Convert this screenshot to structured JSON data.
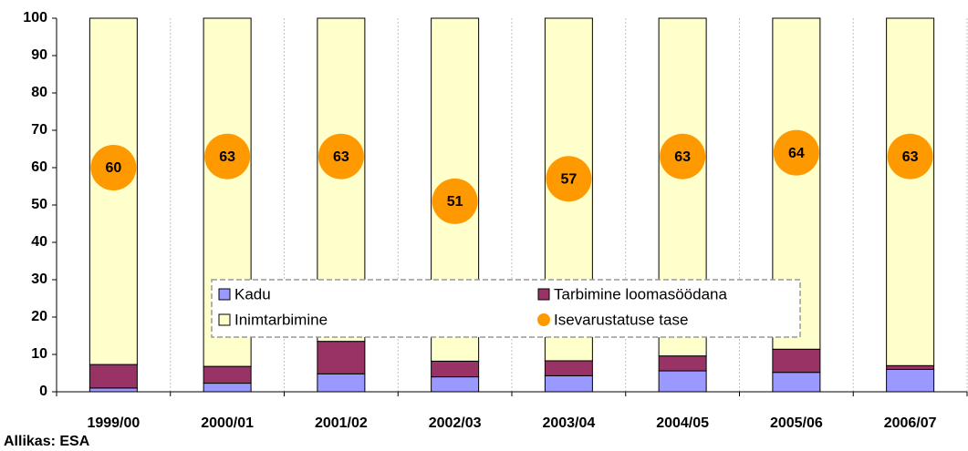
{
  "chart_data": {
    "type": "bar",
    "stacked": true,
    "categories": [
      "1999/00",
      "2000/01",
      "2001/02",
      "2002/03",
      "2003/04",
      "2004/05",
      "2005/06",
      "2006/07"
    ],
    "series": [
      {
        "name": "Kadu",
        "color": "#9999ff",
        "values": [
          1,
          2.3,
          4.8,
          4,
          4.3,
          5.6,
          5.2,
          6
        ]
      },
      {
        "name": "Tarbimine loomasöödana",
        "color": "#993366",
        "values": [
          6.3,
          4.5,
          8.7,
          4.2,
          4,
          4,
          6.2,
          1
        ]
      },
      {
        "name": "Inimtarbimine",
        "color": "#ffffcc",
        "values": [
          92.7,
          93.2,
          86.5,
          91.8,
          91.7,
          90.4,
          88.6,
          93
        ]
      },
      {
        "name": "Isevarustatuse tase",
        "color": "#ff9900",
        "type": "scatter",
        "values": [
          60,
          63,
          63,
          51,
          57,
          63,
          64,
          63
        ]
      }
    ],
    "ylim": [
      0,
      100
    ],
    "yticks": [
      0,
      10,
      20,
      30,
      40,
      50,
      60,
      70,
      80,
      90,
      100
    ],
    "grid": "x",
    "legend": "bottom",
    "source": "Allikas: ESA"
  }
}
